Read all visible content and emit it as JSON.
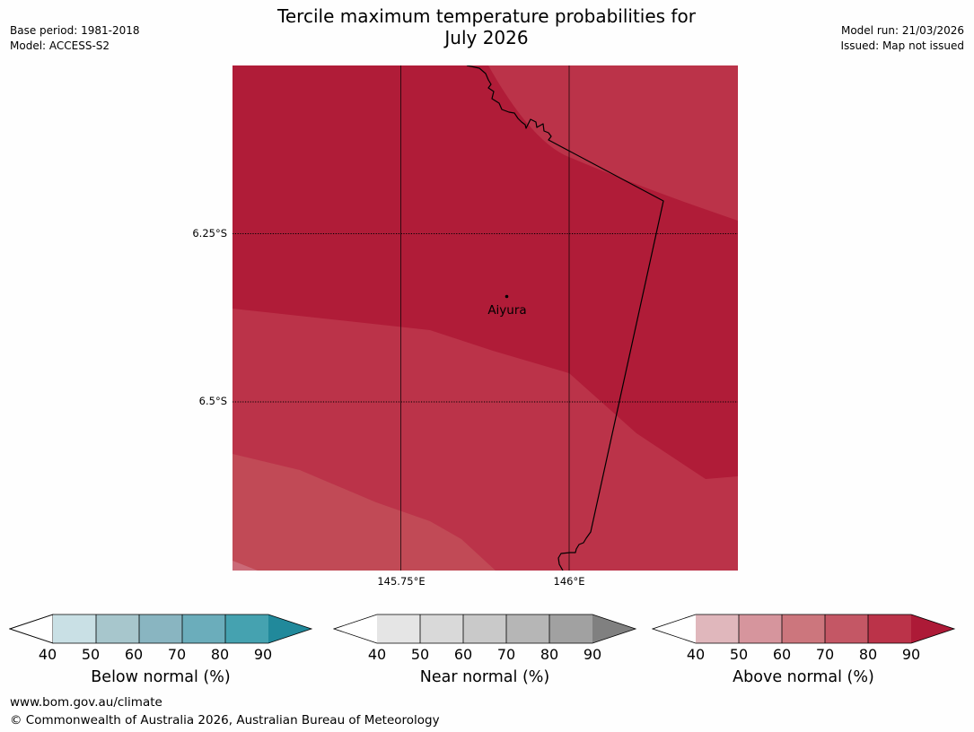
{
  "header": {
    "title_line1": "Tercile maximum temperature probabilities for",
    "title_line2": "July 2026",
    "base_period": "Base period: 1981-2018",
    "model": "Model: ACCESS-S2",
    "model_run": "Model run: 21/03/2026",
    "issued": "Issued: Map not issued"
  },
  "map": {
    "lat_labels": [
      "6.25°S",
      "6.5°S"
    ],
    "lon_labels": [
      "145.75°E",
      "146°E"
    ],
    "place": "Aiyura",
    "zone_colors": {
      "above_80_90": "#b01c38",
      "above_70_80": "#bb3349",
      "above_60_70": "#c14a56",
      "above_50_60": "#cb6a78"
    }
  },
  "colorbars": [
    {
      "title": "Below normal (%)",
      "ticks": [
        "40",
        "50",
        "60",
        "70",
        "80",
        "90"
      ],
      "colors": [
        "#ffffff",
        "#c9e0e5",
        "#a7c6cc",
        "#89b5c1",
        "#6badbb",
        "#45a2b0",
        "#21899b"
      ]
    },
    {
      "title": "Near normal (%)",
      "ticks": [
        "40",
        "50",
        "60",
        "70",
        "80",
        "90"
      ],
      "colors": [
        "#ffffff",
        "#e5e5e5",
        "#d9d9d9",
        "#c9c9c9",
        "#b6b6b6",
        "#a1a1a1",
        "#808080"
      ]
    },
    {
      "title": "Above normal (%)",
      "ticks": [
        "40",
        "50",
        "60",
        "70",
        "80",
        "90"
      ],
      "colors": [
        "#ffffff",
        "#e0b7bc",
        "#d6959d",
        "#cc767d",
        "#c45765",
        "#bb3349",
        "#ad1a37"
      ]
    }
  ],
  "footer": {
    "url": "www.bom.gov.au/climate",
    "copyright": "© Commonwealth of Australia 2026, Australian Bureau of Meteorology"
  }
}
